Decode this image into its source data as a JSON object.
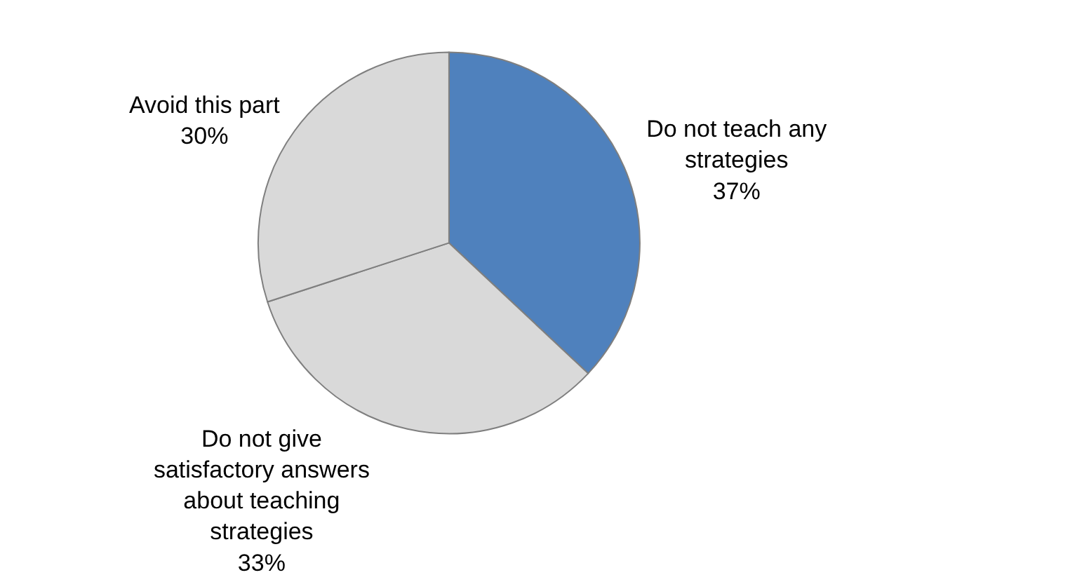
{
  "chart_data": {
    "type": "pie",
    "categories": [
      "Do not teach any strategies",
      "Do not give satisfactory answers about teaching strategies",
      "Avoid this part"
    ],
    "values": [
      37,
      33,
      30
    ],
    "value_labels": [
      "37%",
      "33%",
      "30%"
    ],
    "colors": [
      "#4f81bd",
      "#d9d9d9",
      "#d9d9d9"
    ],
    "legend": false
  }
}
